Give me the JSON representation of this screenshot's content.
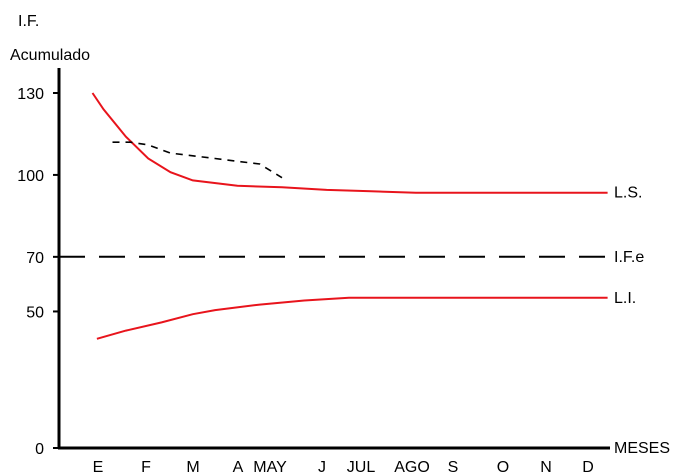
{
  "chart_data": {
    "type": "line",
    "ylabel_line1": "I.F.",
    "ylabel_line2": "Acumulado",
    "xlabel": "MESES",
    "ylim": [
      0,
      140
    ],
    "yticks": [
      0,
      50,
      70,
      100,
      130
    ],
    "categories": [
      "E",
      "F",
      "M",
      "A",
      "MAY",
      "J",
      "JUL",
      "AGO",
      "S",
      "O",
      "N",
      "D"
    ],
    "grid": false,
    "colors": {
      "limits": "#e8141c",
      "axis": "#000000"
    },
    "series": [
      {
        "name": "L.S.",
        "style": "solid",
        "points": [
          {
            "x": 0.75,
            "y": 130
          },
          {
            "x": 1,
            "y": 124
          },
          {
            "x": 1.5,
            "y": 114
          },
          {
            "x": 2,
            "y": 106
          },
          {
            "x": 2.5,
            "y": 101
          },
          {
            "x": 3,
            "y": 98
          },
          {
            "x": 4,
            "y": 96
          },
          {
            "x": 5,
            "y": 95.5
          },
          {
            "x": 6,
            "y": 94.5
          },
          {
            "x": 7,
            "y": 94
          },
          {
            "x": 8,
            "y": 93.5
          },
          {
            "x": 12.3,
            "y": 93.5
          }
        ]
      },
      {
        "name": "",
        "style": "dashed",
        "points": [
          {
            "x": 1.2,
            "y": 112
          },
          {
            "x": 1.6,
            "y": 112
          },
          {
            "x": 2,
            "y": 111
          },
          {
            "x": 2.5,
            "y": 108
          },
          {
            "x": 3,
            "y": 107
          },
          {
            "x": 3.5,
            "y": 106
          },
          {
            "x": 4,
            "y": 105
          },
          {
            "x": 4.5,
            "y": 104
          },
          {
            "x": 5,
            "y": 99
          }
        ]
      },
      {
        "name": "L.I.",
        "style": "solid",
        "points": [
          {
            "x": 0.85,
            "y": 40
          },
          {
            "x": 1.5,
            "y": 43
          },
          {
            "x": 2.3,
            "y": 46
          },
          {
            "x": 3,
            "y": 49
          },
          {
            "x": 3.5,
            "y": 50.5
          },
          {
            "x": 4.5,
            "y": 52.5
          },
          {
            "x": 5.5,
            "y": 54
          },
          {
            "x": 6.5,
            "y": 55
          },
          {
            "x": 12.3,
            "y": 55
          }
        ]
      },
      {
        "name": "I.F.e",
        "style": "longdash",
        "points": [
          {
            "x": 0,
            "y": 70
          },
          {
            "x": 12.3,
            "y": 70
          }
        ]
      }
    ]
  }
}
